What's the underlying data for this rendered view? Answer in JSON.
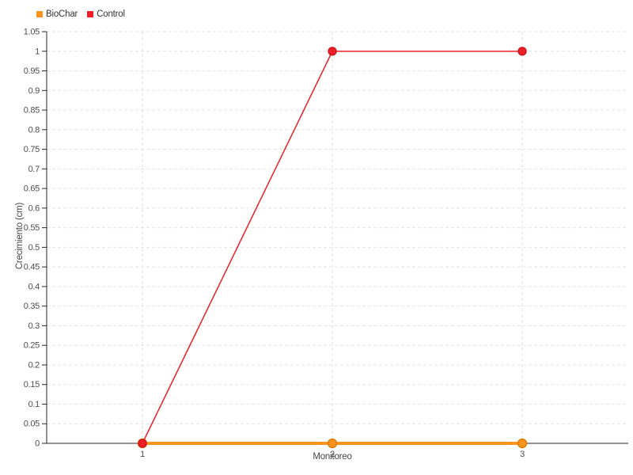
{
  "chart_data": {
    "type": "line",
    "categories": [
      "1",
      "2",
      "3"
    ],
    "series": [
      {
        "name": "BioChar",
        "color": "#F7941E",
        "marker_stroke": "#DD7803",
        "values": [
          0,
          0,
          0
        ]
      },
      {
        "name": "Control",
        "color": "#EE1F26",
        "marker_stroke": "#C9151B",
        "values": [
          0,
          1,
          1
        ]
      }
    ],
    "title": "",
    "xlabel": "Monitoreo",
    "ylabel": "Crecimiento (cm)",
    "ylim": [
      0,
      1.05
    ],
    "ytick_step": 0.05,
    "ytick_labels": [
      "0",
      "0.05",
      "0.1",
      "0.15",
      "0.2",
      "0.25",
      "0.3",
      "0.35",
      "0.4",
      "0.45",
      "0.5",
      "0.55",
      "0.6",
      "0.65",
      "0.7",
      "0.75",
      "0.8",
      "0.85",
      "0.9",
      "0.95",
      "1",
      "1.05"
    ],
    "xtick_labels": [
      "1",
      "2",
      "3"
    ],
    "grid": "dashed",
    "grid_color": "#e2e2e2",
    "axis_color": "#262626",
    "legend_position": "top-left"
  }
}
